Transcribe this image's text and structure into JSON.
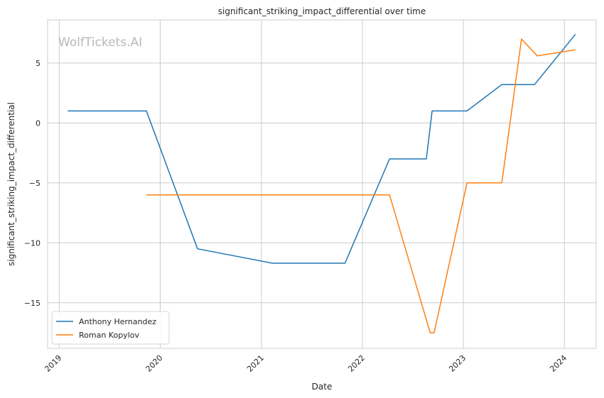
{
  "chart_data": {
    "type": "line",
    "title": "significant_striking_impact_differential over time",
    "xlabel": "Date",
    "ylabel": "significant_striking_impact_differential",
    "watermark": "WolfTickets.AI",
    "xlim": [
      "2018-11-20",
      "2024-04-25"
    ],
    "ylim": [
      -18.8,
      8.6
    ],
    "x_ticks": [
      "2019",
      "2020",
      "2021",
      "2022",
      "2023",
      "2024"
    ],
    "y_ticks": [
      5,
      0,
      -5,
      -10,
      -15
    ],
    "y_tick_labels": [
      "5",
      "0",
      "−5",
      "−10",
      "−15"
    ],
    "grid": true,
    "legend": "lower-left",
    "series": [
      {
        "name": "Anthony Hernandez",
        "color": "#1f77b4",
        "points": [
          [
            "2019-02-01",
            1.0
          ],
          [
            "2019-11-12",
            1.0
          ],
          [
            "2020-05-15",
            -10.5
          ],
          [
            "2021-02-10",
            -11.7
          ],
          [
            "2021-10-30",
            -11.7
          ],
          [
            "2022-04-09",
            -3.0
          ],
          [
            "2022-08-20",
            -3.0
          ],
          [
            "2022-09-10",
            1.0
          ],
          [
            "2023-01-14",
            1.0
          ],
          [
            "2023-05-20",
            3.2
          ],
          [
            "2023-09-15",
            3.2
          ],
          [
            "2024-02-10",
            7.4
          ]
        ]
      },
      {
        "name": "Roman Kopylov",
        "color": "#ff7f0e",
        "points": [
          [
            "2019-11-12",
            -6.0
          ],
          [
            "2022-04-09",
            -6.0
          ],
          [
            "2022-09-03",
            -17.5
          ],
          [
            "2022-09-17",
            -17.5
          ],
          [
            "2023-01-14",
            -5.0
          ],
          [
            "2023-05-20",
            -5.0
          ],
          [
            "2023-07-30",
            7.0
          ],
          [
            "2023-09-25",
            5.6
          ],
          [
            "2024-02-10",
            6.1
          ]
        ]
      }
    ]
  }
}
